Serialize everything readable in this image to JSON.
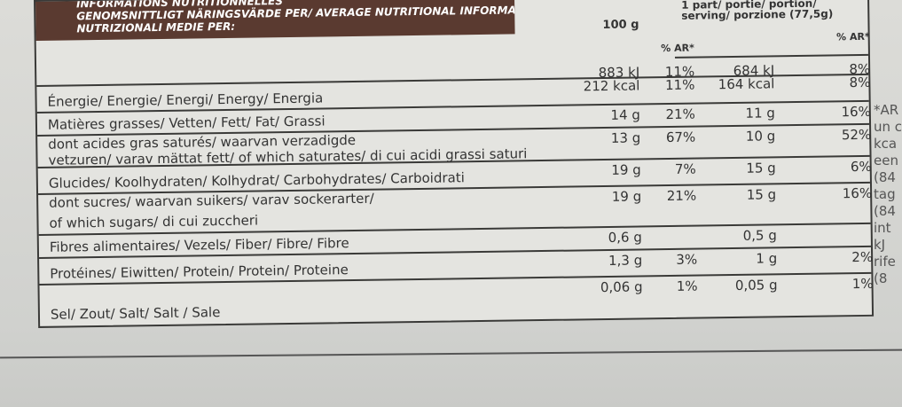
{
  "header": {
    "lines": [
      "INFORMATIONS NUTRITIONNELLES",
      "GENOMSNITTLIGT NÄRINGSVÄRDE PER/ AVERAGE NUTRITIONAL INFORMATION",
      "NUTRIZIONALI MEDIE PER:"
    ]
  },
  "columns": {
    "per_100g": "100 g",
    "ar_100g": "% AR*",
    "per_portion": "1 part/ portie/ portion/ serving/ porzione (77,5g)",
    "ar_portion": "% AR*"
  },
  "table": {
    "rows": [
      {
        "label": [
          "Énergie/ Energie/ Energi/ Energy/ Energia"
        ],
        "per_100g": [
          "883 kJ",
          "212 kcal"
        ],
        "ar_100g": [
          "11%",
          "11%"
        ],
        "per_portion": [
          "684 kJ",
          "164 kcal"
        ],
        "ar_portion": [
          "8%",
          "8%"
        ]
      },
      {
        "label": [
          "Matières grasses/ Vetten/ Fett/ Fat/ Grassi"
        ],
        "per_100g": [
          "14 g"
        ],
        "ar_100g": [
          "21%"
        ],
        "per_portion": [
          "11 g"
        ],
        "ar_portion": [
          "16%"
        ]
      },
      {
        "label": [
          "dont acides gras saturés/ waarvan verzadigde",
          "vetzuren/ varav mättat fett/ of which saturates/ di cui acidi grassi saturi"
        ],
        "per_100g": [
          "13 g"
        ],
        "ar_100g": [
          "67%"
        ],
        "per_portion": [
          "10 g"
        ],
        "ar_portion": [
          "52%"
        ]
      },
      {
        "label": [
          "Glucides/ Koolhydraten/ Kolhydrat/ Carbohydrates/ Carboidrati"
        ],
        "per_100g": [
          "19 g"
        ],
        "ar_100g": [
          "7%"
        ],
        "per_portion": [
          "15 g"
        ],
        "ar_portion": [
          "6%"
        ]
      },
      {
        "label": [
          "dont sucres/ waarvan suikers/ varav sockerarter/",
          "of which sugars/ di cui zuccheri"
        ],
        "per_100g": [
          "19 g"
        ],
        "ar_100g": [
          "21%"
        ],
        "per_portion": [
          "15 g"
        ],
        "ar_portion": [
          "16%"
        ]
      },
      {
        "label": [
          "Fibres alimentaires/ Vezels/ Fiber/ Fibre/ Fibre"
        ],
        "per_100g": [
          "0,6 g"
        ],
        "per_portion": [
          "0,5 g"
        ]
      },
      {
        "label": [
          "Protéines/ Eiwitten/ Protein/ Protein/ Proteine"
        ],
        "per_100g": [
          "1,3 g"
        ],
        "ar_100g": [
          "3%"
        ],
        "per_portion": [
          "1 g"
        ],
        "ar_portion": [
          "2%"
        ]
      },
      {
        "label": [
          "Sel/ Zout/ Salt/ Salt / Sale"
        ],
        "per_100g": [
          "0,06 g"
        ],
        "ar_100g": [
          "1%"
        ],
        "per_portion": [
          "0,05 g"
        ],
        "ar_portion": [
          "1%"
        ]
      }
    ]
  },
  "side_note": {
    "lines": [
      "*AR",
      "un c",
      "kca",
      "een",
      "(84",
      "tag",
      "(84",
      "int",
      "kJ",
      "rife",
      "(8"
    ]
  }
}
